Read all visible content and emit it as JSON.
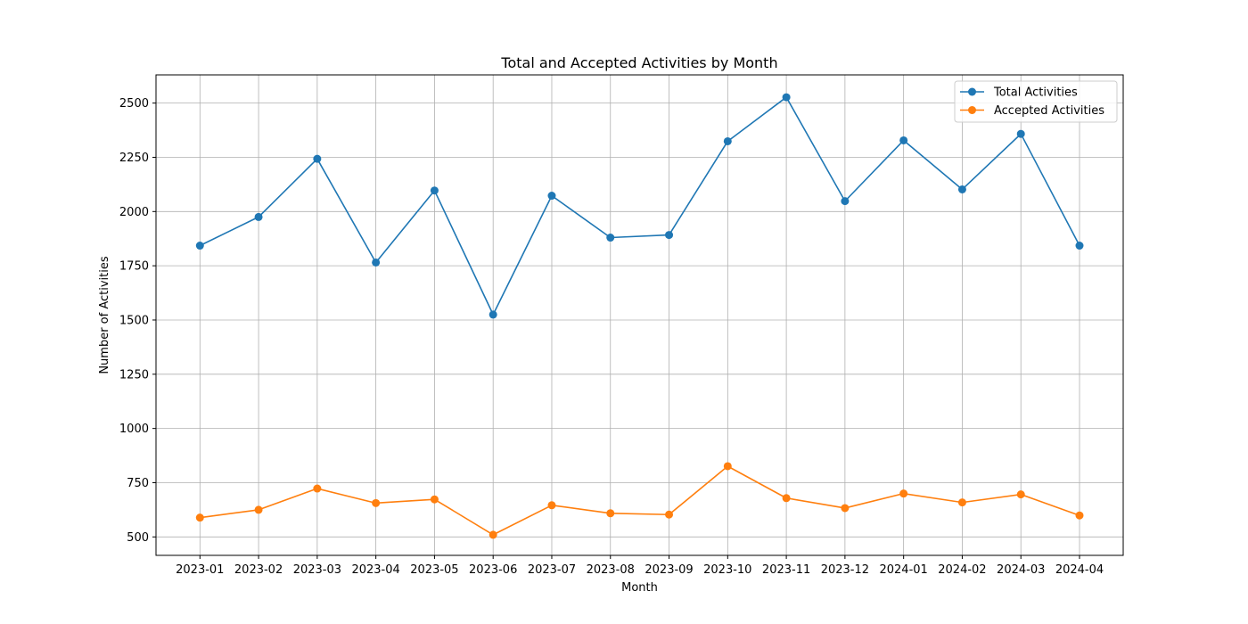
{
  "chart_data": {
    "type": "line",
    "title": "Total and Accepted Activities by Month",
    "xlabel": "Month",
    "ylabel": "Number of Activities",
    "categories": [
      "2023-01",
      "2023-02",
      "2023-03",
      "2023-04",
      "2023-05",
      "2023-06",
      "2023-07",
      "2023-08",
      "2023-09",
      "2023-10",
      "2023-11",
      "2023-12",
      "2024-01",
      "2024-02",
      "2024-03",
      "2024-04"
    ],
    "ylim": [
      415,
      2630
    ],
    "yticks": [
      500,
      750,
      1000,
      1250,
      1500,
      1750,
      2000,
      2250,
      2500
    ],
    "grid": true,
    "legend_position": "top-right",
    "series": [
      {
        "name": "Total Activities",
        "color": "#1f77b4",
        "marker": "circle",
        "values": [
          1843,
          1975,
          2243,
          1765,
          2097,
          1525,
          2073,
          1880,
          1892,
          2324,
          2527,
          2048,
          2328,
          2102,
          2358,
          1843
        ]
      },
      {
        "name": "Accepted Activities",
        "color": "#ff7f0e",
        "marker": "circle",
        "values": [
          589,
          625,
          723,
          656,
          673,
          510,
          646,
          609,
          603,
          826,
          679,
          633,
          700,
          659,
          696,
          599
        ]
      }
    ]
  }
}
